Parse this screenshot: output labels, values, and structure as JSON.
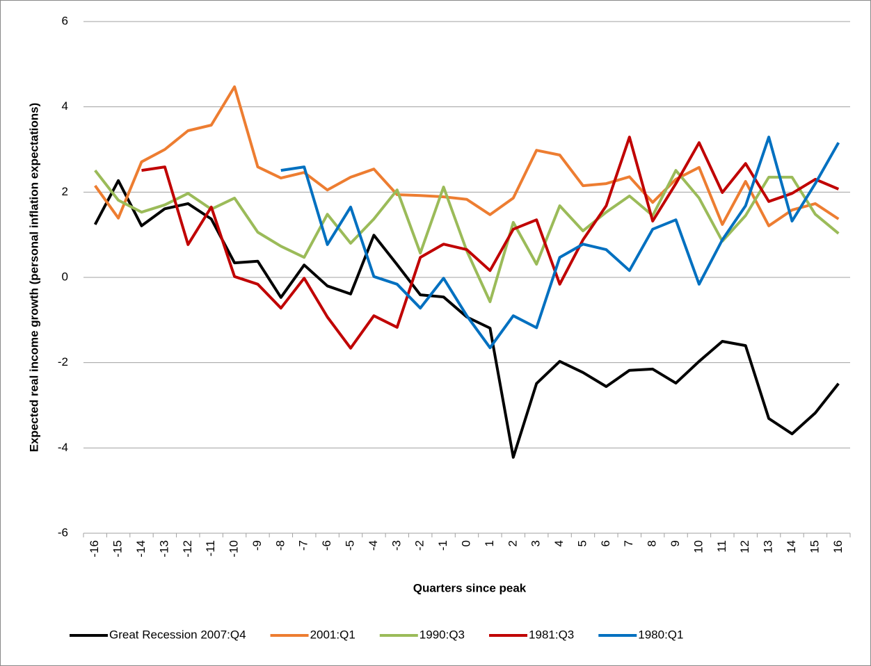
{
  "chart_data": {
    "type": "line",
    "x_label": "Quarters since peak",
    "y_label": "Expected real income growth (personal inflation expectations)",
    "categories": [
      "-16",
      "-15",
      "-14",
      "-13",
      "-12",
      "-11",
      "-10",
      "-9",
      "-8",
      "-7",
      "-6",
      "-5",
      "-4",
      "-3",
      "-2",
      "-1",
      "0",
      "1",
      "2",
      "3",
      "4",
      "5",
      "6",
      "7",
      "8",
      "9",
      "10",
      "11",
      "12",
      "13",
      "14",
      "15",
      "16"
    ],
    "ylim": [
      -6,
      6
    ],
    "yticks": [
      -6,
      -4,
      -2,
      0,
      2,
      4,
      6
    ],
    "grid": true,
    "legend": "bottom",
    "series": [
      {
        "name": "Great Recession 2007:Q4",
        "color": "#000000",
        "values": [
          1.24,
          2.27,
          1.21,
          1.61,
          1.73,
          1.37,
          0.34,
          0.38,
          -0.47,
          0.29,
          -0.2,
          -0.39,
          0.99,
          0.3,
          -0.41,
          -0.46,
          -0.93,
          -1.19,
          -4.22,
          -2.49,
          -1.97,
          -2.23,
          -2.56,
          -2.18,
          -2.15,
          -2.48,
          -1.97,
          -1.5,
          -1.6,
          -3.31,
          -3.67,
          -3.18,
          -2.49
        ]
      },
      {
        "name": "2001:Q1",
        "color": "#ed7d31",
        "values": [
          2.15,
          1.39,
          2.71,
          3.0,
          3.44,
          3.57,
          4.47,
          2.59,
          2.33,
          2.46,
          2.05,
          2.35,
          2.54,
          1.94,
          1.92,
          1.89,
          1.83,
          1.47,
          1.86,
          2.98,
          2.87,
          2.15,
          2.2,
          2.36,
          1.76,
          2.3,
          2.58,
          1.24,
          2.25,
          1.21,
          1.58,
          1.73,
          1.37
        ]
      },
      {
        "name": "1990:Q3",
        "color": "#9bbb59",
        "values": [
          2.51,
          1.81,
          1.53,
          1.7,
          1.97,
          1.6,
          1.86,
          1.06,
          0.73,
          0.47,
          1.48,
          0.8,
          1.37,
          2.05,
          0.57,
          2.12,
          0.62,
          -0.57,
          1.29,
          0.31,
          1.68,
          1.09,
          1.53,
          1.91,
          1.45,
          2.51,
          1.86,
          0.85,
          1.45,
          2.35,
          2.35,
          1.48,
          1.03
        ]
      },
      {
        "name": "1981:Q3",
        "color": "#c00000",
        "values": [
          null,
          null,
          2.51,
          2.59,
          0.77,
          1.65,
          0.02,
          -0.16,
          -0.72,
          -0.02,
          -0.93,
          -1.66,
          -0.9,
          -1.17,
          0.47,
          0.78,
          0.65,
          0.16,
          1.13,
          1.35,
          -0.16,
          0.88,
          1.68,
          3.29,
          1.32,
          2.2,
          3.16,
          1.99,
          2.67,
          1.78,
          1.97,
          2.3,
          2.07
        ]
      },
      {
        "name": "1980:Q1",
        "color": "#0070c0",
        "values": [
          null,
          null,
          null,
          null,
          null,
          null,
          null,
          null,
          2.51,
          2.59,
          0.77,
          1.65,
          0.02,
          -0.16,
          -0.72,
          -0.02,
          -0.9,
          -1.65,
          -0.9,
          -1.18,
          0.47,
          0.78,
          0.65,
          0.16,
          1.13,
          1.35,
          -0.16,
          0.88,
          1.68,
          3.29,
          1.32,
          2.2,
          3.16
        ]
      }
    ]
  }
}
